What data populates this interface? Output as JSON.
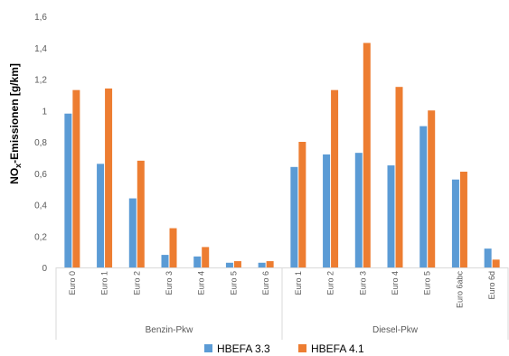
{
  "chart_data": {
    "type": "bar",
    "ylabel_main": "NO",
    "ylabel_sub": "x",
    "ylabel_rest": "-Emissionen [g/km]",
    "ylim": [
      0,
      1.6
    ],
    "yticks": [
      "0",
      "0,2",
      "0,4",
      "0,6",
      "0,8",
      "1",
      "1,2",
      "1,4",
      "1,6"
    ],
    "grid": false,
    "legend_position": "bottom",
    "categories": [
      "Euro 0",
      "Euro 1",
      "Euro 2",
      "Euro 3",
      "Euro 4",
      "Euro 5",
      "Euro 6",
      "Euro 1",
      "Euro 2",
      "Euro 3",
      "Euro 4",
      "Euro 5",
      "Euro 6abc",
      "Euro 6d"
    ],
    "groups": [
      {
        "label": "Benzin-Pkw",
        "count": 7
      },
      {
        "label": "Diesel-Pkw",
        "count": 7
      }
    ],
    "series": [
      {
        "name": "HBEFA 3.3",
        "color": "#5B9BD5",
        "values": [
          0.98,
          0.66,
          0.44,
          0.08,
          0.07,
          0.03,
          0.03,
          0.64,
          0.72,
          0.73,
          0.65,
          0.9,
          0.56,
          0.12
        ]
      },
      {
        "name": "HBEFA 4.1",
        "color": "#ED7D31",
        "values": [
          1.13,
          1.14,
          0.68,
          0.25,
          0.13,
          0.04,
          0.04,
          0.8,
          1.13,
          1.43,
          1.15,
          1.0,
          0.61,
          0.05
        ]
      }
    ]
  }
}
